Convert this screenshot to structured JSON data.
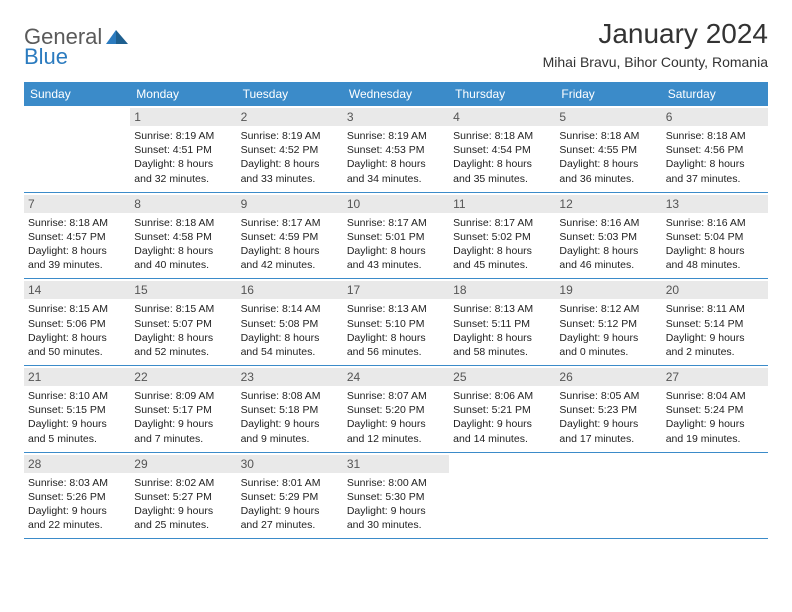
{
  "brand": {
    "general": "General",
    "blue": "Blue"
  },
  "title": "January 2024",
  "location": "Mihai Bravu, Bihor County, Romania",
  "day_names": [
    "Sunday",
    "Monday",
    "Tuesday",
    "Wednesday",
    "Thursday",
    "Friday",
    "Saturday"
  ],
  "colors": {
    "header_bg": "#3b8bc9",
    "header_text": "#ffffff",
    "daynum_bg": "#e9e9e9",
    "border": "#3b8bc9",
    "brand_gray": "#5a5a5a",
    "brand_blue": "#2b7bbf"
  },
  "typography": {
    "title_fontsize": 28,
    "location_fontsize": 14,
    "header_fontsize": 12,
    "cell_fontsize": 10.5
  },
  "weeks": [
    [
      {
        "n": "",
        "sr": "",
        "ss": "",
        "dl": ""
      },
      {
        "n": "1",
        "sr": "Sunrise: 8:19 AM",
        "ss": "Sunset: 4:51 PM",
        "dl": "Daylight: 8 hours and 32 minutes."
      },
      {
        "n": "2",
        "sr": "Sunrise: 8:19 AM",
        "ss": "Sunset: 4:52 PM",
        "dl": "Daylight: 8 hours and 33 minutes."
      },
      {
        "n": "3",
        "sr": "Sunrise: 8:19 AM",
        "ss": "Sunset: 4:53 PM",
        "dl": "Daylight: 8 hours and 34 minutes."
      },
      {
        "n": "4",
        "sr": "Sunrise: 8:18 AM",
        "ss": "Sunset: 4:54 PM",
        "dl": "Daylight: 8 hours and 35 minutes."
      },
      {
        "n": "5",
        "sr": "Sunrise: 8:18 AM",
        "ss": "Sunset: 4:55 PM",
        "dl": "Daylight: 8 hours and 36 minutes."
      },
      {
        "n": "6",
        "sr": "Sunrise: 8:18 AM",
        "ss": "Sunset: 4:56 PM",
        "dl": "Daylight: 8 hours and 37 minutes."
      }
    ],
    [
      {
        "n": "7",
        "sr": "Sunrise: 8:18 AM",
        "ss": "Sunset: 4:57 PM",
        "dl": "Daylight: 8 hours and 39 minutes."
      },
      {
        "n": "8",
        "sr": "Sunrise: 8:18 AM",
        "ss": "Sunset: 4:58 PM",
        "dl": "Daylight: 8 hours and 40 minutes."
      },
      {
        "n": "9",
        "sr": "Sunrise: 8:17 AM",
        "ss": "Sunset: 4:59 PM",
        "dl": "Daylight: 8 hours and 42 minutes."
      },
      {
        "n": "10",
        "sr": "Sunrise: 8:17 AM",
        "ss": "Sunset: 5:01 PM",
        "dl": "Daylight: 8 hours and 43 minutes."
      },
      {
        "n": "11",
        "sr": "Sunrise: 8:17 AM",
        "ss": "Sunset: 5:02 PM",
        "dl": "Daylight: 8 hours and 45 minutes."
      },
      {
        "n": "12",
        "sr": "Sunrise: 8:16 AM",
        "ss": "Sunset: 5:03 PM",
        "dl": "Daylight: 8 hours and 46 minutes."
      },
      {
        "n": "13",
        "sr": "Sunrise: 8:16 AM",
        "ss": "Sunset: 5:04 PM",
        "dl": "Daylight: 8 hours and 48 minutes."
      }
    ],
    [
      {
        "n": "14",
        "sr": "Sunrise: 8:15 AM",
        "ss": "Sunset: 5:06 PM",
        "dl": "Daylight: 8 hours and 50 minutes."
      },
      {
        "n": "15",
        "sr": "Sunrise: 8:15 AM",
        "ss": "Sunset: 5:07 PM",
        "dl": "Daylight: 8 hours and 52 minutes."
      },
      {
        "n": "16",
        "sr": "Sunrise: 8:14 AM",
        "ss": "Sunset: 5:08 PM",
        "dl": "Daylight: 8 hours and 54 minutes."
      },
      {
        "n": "17",
        "sr": "Sunrise: 8:13 AM",
        "ss": "Sunset: 5:10 PM",
        "dl": "Daylight: 8 hours and 56 minutes."
      },
      {
        "n": "18",
        "sr": "Sunrise: 8:13 AM",
        "ss": "Sunset: 5:11 PM",
        "dl": "Daylight: 8 hours and 58 minutes."
      },
      {
        "n": "19",
        "sr": "Sunrise: 8:12 AM",
        "ss": "Sunset: 5:12 PM",
        "dl": "Daylight: 9 hours and 0 minutes."
      },
      {
        "n": "20",
        "sr": "Sunrise: 8:11 AM",
        "ss": "Sunset: 5:14 PM",
        "dl": "Daylight: 9 hours and 2 minutes."
      }
    ],
    [
      {
        "n": "21",
        "sr": "Sunrise: 8:10 AM",
        "ss": "Sunset: 5:15 PM",
        "dl": "Daylight: 9 hours and 5 minutes."
      },
      {
        "n": "22",
        "sr": "Sunrise: 8:09 AM",
        "ss": "Sunset: 5:17 PM",
        "dl": "Daylight: 9 hours and 7 minutes."
      },
      {
        "n": "23",
        "sr": "Sunrise: 8:08 AM",
        "ss": "Sunset: 5:18 PM",
        "dl": "Daylight: 9 hours and 9 minutes."
      },
      {
        "n": "24",
        "sr": "Sunrise: 8:07 AM",
        "ss": "Sunset: 5:20 PM",
        "dl": "Daylight: 9 hours and 12 minutes."
      },
      {
        "n": "25",
        "sr": "Sunrise: 8:06 AM",
        "ss": "Sunset: 5:21 PM",
        "dl": "Daylight: 9 hours and 14 minutes."
      },
      {
        "n": "26",
        "sr": "Sunrise: 8:05 AM",
        "ss": "Sunset: 5:23 PM",
        "dl": "Daylight: 9 hours and 17 minutes."
      },
      {
        "n": "27",
        "sr": "Sunrise: 8:04 AM",
        "ss": "Sunset: 5:24 PM",
        "dl": "Daylight: 9 hours and 19 minutes."
      }
    ],
    [
      {
        "n": "28",
        "sr": "Sunrise: 8:03 AM",
        "ss": "Sunset: 5:26 PM",
        "dl": "Daylight: 9 hours and 22 minutes."
      },
      {
        "n": "29",
        "sr": "Sunrise: 8:02 AM",
        "ss": "Sunset: 5:27 PM",
        "dl": "Daylight: 9 hours and 25 minutes."
      },
      {
        "n": "30",
        "sr": "Sunrise: 8:01 AM",
        "ss": "Sunset: 5:29 PM",
        "dl": "Daylight: 9 hours and 27 minutes."
      },
      {
        "n": "31",
        "sr": "Sunrise: 8:00 AM",
        "ss": "Sunset: 5:30 PM",
        "dl": "Daylight: 9 hours and 30 minutes."
      },
      {
        "n": "",
        "sr": "",
        "ss": "",
        "dl": ""
      },
      {
        "n": "",
        "sr": "",
        "ss": "",
        "dl": ""
      },
      {
        "n": "",
        "sr": "",
        "ss": "",
        "dl": ""
      }
    ]
  ]
}
